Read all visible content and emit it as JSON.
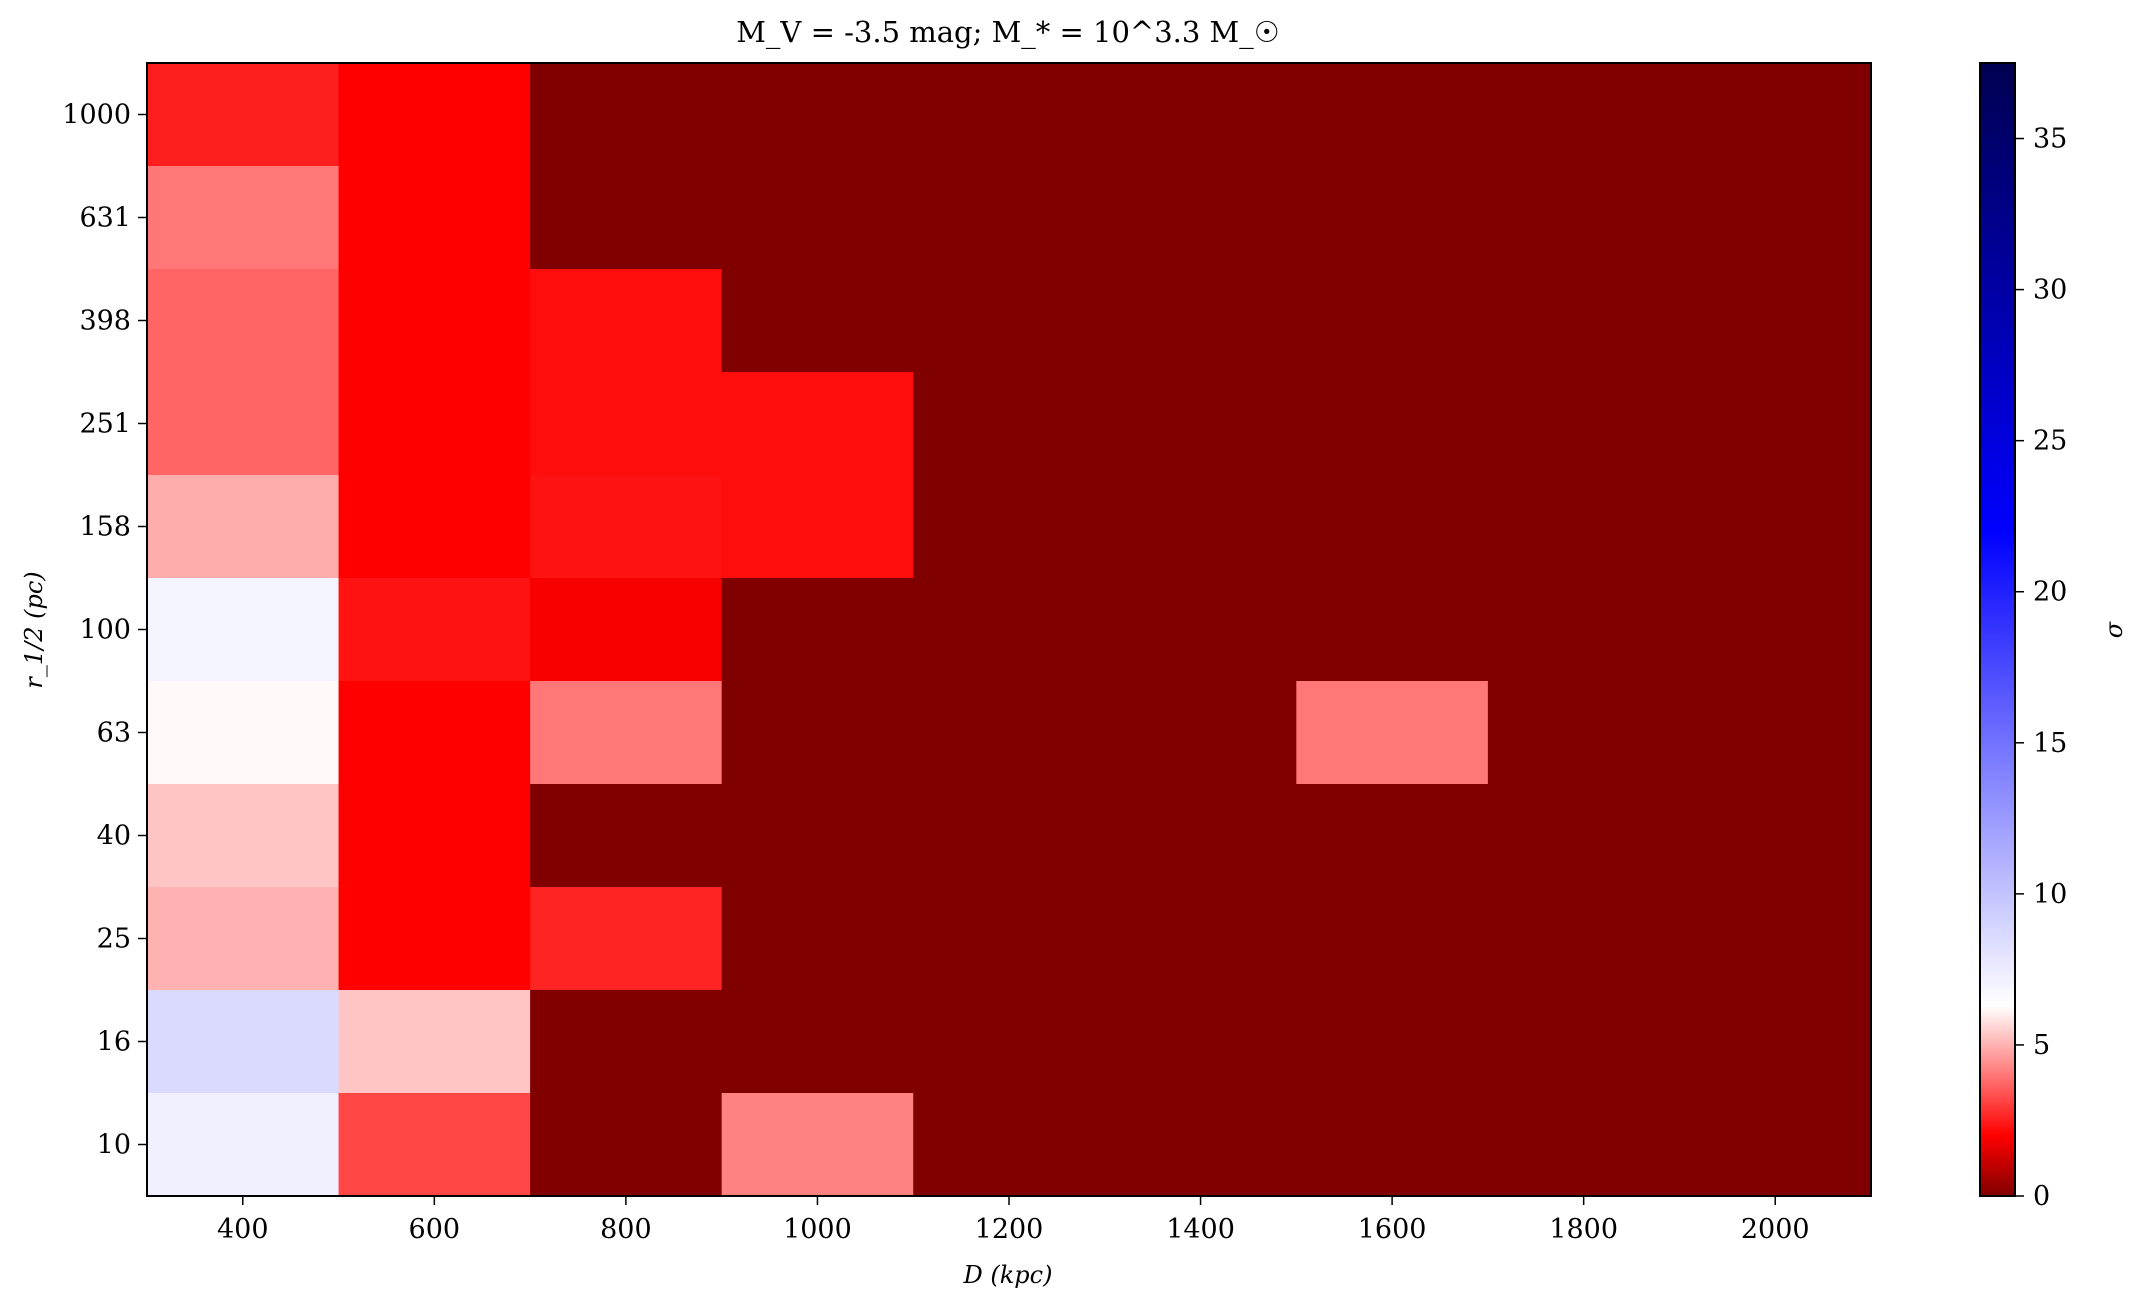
{
  "chart_data": {
    "type": "heatmap",
    "title": "M_V = -3.5 mag; M_* = 10^3.3 M_☉",
    "xlabel": "D (kpc)",
    "ylabel": "r_1/2 (pc)",
    "colorbar_label": "σ",
    "x_categories": [
      400,
      600,
      800,
      1000,
      1200,
      1400,
      1600,
      1800,
      2000
    ],
    "x_tick_labels": [
      "400",
      "600",
      "800",
      "1000",
      "1200",
      "1400",
      "1600",
      "1800",
      "2000"
    ],
    "xlim": [
      300,
      2100
    ],
    "y_categories": [
      1000,
      631,
      398,
      251,
      158,
      100,
      63,
      40,
      25,
      16,
      10
    ],
    "y_tick_labels": [
      "1000",
      "631",
      "398",
      "251",
      "158",
      "100",
      "63",
      "40",
      "25",
      "16",
      "10"
    ],
    "values": [
      [
        2.5,
        2.0,
        0,
        0,
        0,
        0,
        0,
        0,
        0
      ],
      [
        4.0,
        2.0,
        0,
        0,
        0,
        0,
        0,
        0,
        0
      ],
      [
        3.7,
        2.0,
        2.2,
        0,
        0,
        0,
        0,
        0,
        0
      ],
      [
        3.7,
        2.0,
        2.2,
        2.2,
        0,
        0,
        0,
        0,
        0
      ],
      [
        4.9,
        2.0,
        2.3,
        2.2,
        0,
        0,
        0,
        0,
        0
      ],
      [
        7.0,
        2.3,
        1.9,
        0,
        0,
        0,
        0,
        0,
        0
      ],
      [
        6.2,
        2.0,
        4.0,
        0,
        0,
        0,
        4.0,
        0,
        0
      ],
      [
        5.3,
        2.0,
        0,
        0,
        0,
        0,
        0,
        0,
        0
      ],
      [
        5.0,
        2.0,
        2.6,
        0,
        0,
        0,
        0,
        0,
        0
      ],
      [
        8.6,
        5.3,
        0,
        0,
        0,
        0,
        0,
        0,
        0
      ],
      [
        7.2,
        3.2,
        0,
        4.2,
        0,
        0,
        0,
        0,
        0
      ]
    ],
    "colorbar": {
      "vmin": 0,
      "vmax": 37.5,
      "ticks": [
        0,
        5,
        10,
        15,
        20,
        25,
        30,
        35
      ],
      "colormap_stops": [
        {
          "value": 0,
          "color": "#800000"
        },
        {
          "value": 2.0,
          "color": "#ff0000"
        },
        {
          "value": 6.3,
          "color": "#ffffff"
        },
        {
          "value": 22,
          "color": "#0000ff"
        },
        {
          "value": 37.5,
          "color": "#000050"
        }
      ]
    },
    "grid": false,
    "legend": "none"
  }
}
